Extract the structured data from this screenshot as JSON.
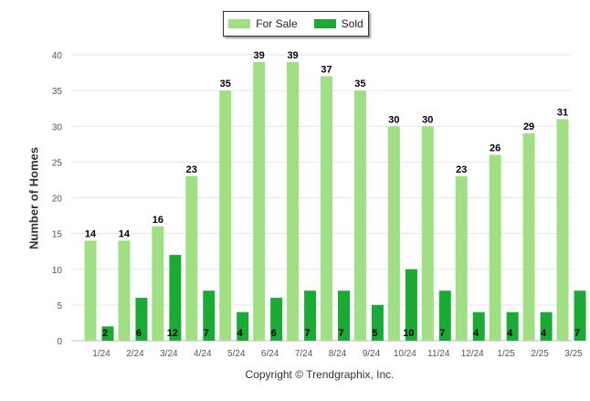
{
  "chart_data": {
    "type": "bar",
    "categories": [
      "1/24",
      "2/24",
      "3/24",
      "4/24",
      "5/24",
      "6/24",
      "7/24",
      "8/24",
      "9/24",
      "10/24",
      "11/24",
      "12/24",
      "1/25",
      "2/25",
      "3/25"
    ],
    "series": [
      {
        "name": "For Sale",
        "color": "#a0df84",
        "values": [
          14,
          14,
          16,
          23,
          35,
          39,
          39,
          37,
          35,
          30,
          30,
          23,
          26,
          29,
          31
        ]
      },
      {
        "name": "Sold",
        "color": "#1aaa35",
        "values": [
          2,
          6,
          12,
          7,
          4,
          6,
          7,
          7,
          5,
          10,
          7,
          4,
          4,
          4,
          7
        ]
      }
    ],
    "ylabel": "Number of Homes",
    "xlabel": "",
    "ylim": [
      0,
      40
    ],
    "yticks": [
      0,
      5,
      10,
      15,
      20,
      25,
      30,
      35,
      40
    ],
    "grid": true,
    "legend_position": "top-center"
  },
  "footer": {
    "copyright": "Copyright © Trendgraphix, Inc."
  }
}
